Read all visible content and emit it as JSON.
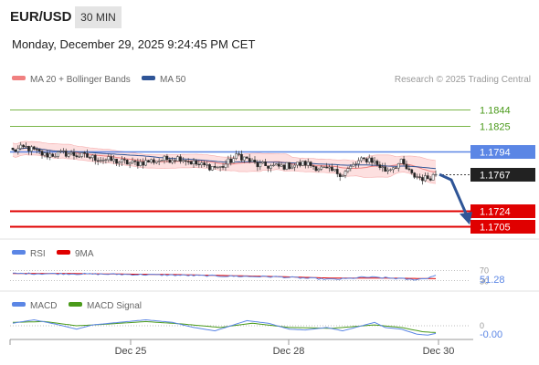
{
  "header": {
    "symbol": "EUR/USD",
    "timeframe": "30 MIN",
    "datetime": "Monday, December 29, 2025 9:24:45 PM CET"
  },
  "attribution": "Research © 2025 Trading Central",
  "colors": {
    "bollinger": "#f08080",
    "ma50": "#2f5597",
    "resistance": "#7ab648",
    "pivot": "#5b86e5",
    "support": "#e00000",
    "current": "#222222",
    "arrow": "#2f5597",
    "rsi": "#5b86e5",
    "rsi_ma": "#e00000",
    "macd": "#5b86e5",
    "macd_signal": "#4a9a1a"
  },
  "chart_data": [
    {
      "type": "line",
      "panel": "price",
      "legend": [
        {
          "name": "MA 20 + Bollinger Bands",
          "color": "#f08080"
        },
        {
          "name": "MA 50",
          "color": "#2f5597"
        }
      ],
      "levels": [
        {
          "value": 1.1844,
          "label": "1.1844",
          "kind": "resistance"
        },
        {
          "value": 1.1825,
          "label": "1.1825",
          "kind": "resistance"
        },
        {
          "value": 1.1794,
          "label": "1.1794",
          "kind": "pivot"
        },
        {
          "value": 1.1767,
          "label": "1.1767",
          "kind": "current"
        },
        {
          "value": 1.1724,
          "label": "1.1724",
          "kind": "support"
        },
        {
          "value": 1.1705,
          "label": "1.1705",
          "kind": "support"
        }
      ],
      "x_ticks": [
        "Dec 25",
        "Dec 28",
        "Dec 30"
      ],
      "ylim": [
        1.169,
        1.1866
      ],
      "candle_count": 160,
      "close_anchors": [
        [
          0,
          1.1795
        ],
        [
          5,
          1.1799
        ],
        [
          12,
          1.179
        ],
        [
          20,
          1.1792
        ],
        [
          28,
          1.1788
        ],
        [
          36,
          1.1784
        ],
        [
          45,
          1.178
        ],
        [
          55,
          1.1784
        ],
        [
          63,
          1.1787
        ],
        [
          70,
          1.1778
        ],
        [
          78,
          1.1775
        ],
        [
          85,
          1.179
        ],
        [
          92,
          1.1778
        ],
        [
          100,
          1.1776
        ],
        [
          110,
          1.178
        ],
        [
          118,
          1.1772
        ],
        [
          124,
          1.1768
        ],
        [
          130,
          1.1782
        ],
        [
          134,
          1.1786
        ],
        [
          140,
          1.1772
        ],
        [
          146,
          1.1781
        ],
        [
          150,
          1.1766
        ],
        [
          155,
          1.1762
        ],
        [
          159,
          1.1767
        ]
      ],
      "forecast": {
        "from": 1.1767,
        "to": 1.1705
      }
    },
    {
      "type": "line",
      "panel": "rsi",
      "legend": [
        {
          "name": "RSI",
          "color": "#5b86e5"
        },
        {
          "name": "9MA",
          "color": "#e00000"
        }
      ],
      "levels": [
        "70",
        "30"
      ],
      "ylim": [
        0,
        100
      ],
      "current_label": "51.28",
      "rsi_anchors": [
        [
          0,
          58
        ],
        [
          20,
          57
        ],
        [
          40,
          55
        ],
        [
          60,
          52
        ],
        [
          80,
          48
        ],
        [
          100,
          45
        ],
        [
          110,
          40
        ],
        [
          120,
          35
        ],
        [
          126,
          38
        ],
        [
          132,
          44
        ],
        [
          140,
          41
        ],
        [
          146,
          38
        ],
        [
          150,
          34
        ],
        [
          155,
          38
        ],
        [
          159,
          51.28
        ]
      ],
      "ma_anchors": [
        [
          0,
          58
        ],
        [
          20,
          58
        ],
        [
          40,
          56
        ],
        [
          60,
          54
        ],
        [
          80,
          50
        ],
        [
          100,
          46
        ],
        [
          120,
          40
        ],
        [
          140,
          40
        ],
        [
          159,
          38
        ]
      ]
    },
    {
      "type": "line",
      "panel": "macd",
      "legend": [
        {
          "name": "MACD",
          "color": "#5b86e5"
        },
        {
          "name": "MACD Signal",
          "color": "#4a9a1a"
        }
      ],
      "zero_label": "0",
      "current_label": "-0.00",
      "ylim": [
        -0.0014,
        0.0014
      ],
      "macd_anchors": [
        [
          0,
          0.0003
        ],
        [
          8,
          0.0007
        ],
        [
          16,
          0.0002
        ],
        [
          24,
          -0.0004
        ],
        [
          30,
          0.0001
        ],
        [
          40,
          0.0004
        ],
        [
          50,
          0.0007
        ],
        [
          60,
          0.0004
        ],
        [
          68,
          -0.0002
        ],
        [
          76,
          -0.0006
        ],
        [
          82,
          0.0
        ],
        [
          88,
          0.0006
        ],
        [
          96,
          0.0003
        ],
        [
          104,
          -0.0004
        ],
        [
          110,
          -0.0005
        ],
        [
          118,
          -0.0002
        ],
        [
          124,
          -0.0006
        ],
        [
          130,
          -0.0001
        ],
        [
          136,
          0.0004
        ],
        [
          140,
          -0.0002
        ],
        [
          146,
          -0.0004
        ],
        [
          152,
          -0.001
        ],
        [
          156,
          -0.0011
        ],
        [
          159,
          -0.0009
        ]
      ],
      "signal_anchors": [
        [
          0,
          0.0004
        ],
        [
          12,
          0.0005
        ],
        [
          24,
          0.0
        ],
        [
          36,
          0.0002
        ],
        [
          50,
          0.0005
        ],
        [
          64,
          0.0002
        ],
        [
          78,
          -0.0002
        ],
        [
          90,
          0.0003
        ],
        [
          104,
          -0.0002
        ],
        [
          120,
          -0.0003
        ],
        [
          136,
          0.0001
        ],
        [
          146,
          -0.0002
        ],
        [
          154,
          -0.0007
        ],
        [
          159,
          -0.0008
        ]
      ]
    }
  ]
}
